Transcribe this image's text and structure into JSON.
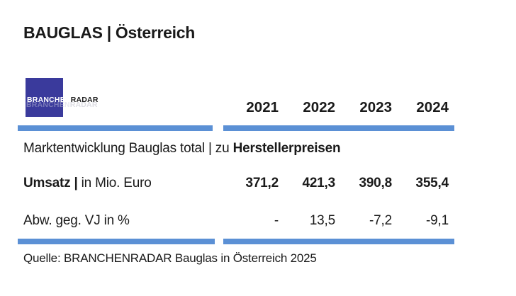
{
  "title": "BAUGLAS | Österreich",
  "logo": {
    "part1": "BRANCHEN",
    "part2": "RADAR"
  },
  "table": {
    "years": [
      "2021",
      "2022",
      "2023",
      "2024"
    ],
    "section": {
      "regular": "Marktentwicklung Bauglas total | zu ",
      "bold": "Herstellerpreisen"
    },
    "rows": [
      {
        "label_bold": "Umsatz | ",
        "label_regular": "in Mio. Euro",
        "values": [
          "371,2",
          "421,3",
          "390,8",
          "355,4"
        ]
      },
      {
        "label_bold": "",
        "label_regular": "Abw. geg. VJ in %",
        "values": [
          "-",
          "13,5",
          "-7,2",
          "-9,1"
        ]
      }
    ]
  },
  "source": "Quelle: BRANCHENRADAR Bauglas in Österreich 2025",
  "colors": {
    "accent_bar": "#5B90D5",
    "logo_background": "#3A3A9C"
  },
  "chart_data": {
    "type": "table",
    "title": "Marktentwicklung Bauglas total | zu Herstellerpreisen",
    "categories": [
      "2021",
      "2022",
      "2023",
      "2024"
    ],
    "series": [
      {
        "name": "Umsatz | in Mio. Euro",
        "values": [
          371.2,
          421.3,
          390.8,
          355.4
        ]
      },
      {
        "name": "Abw. geg. VJ in %",
        "values": [
          null,
          13.5,
          -7.2,
          -9.1
        ]
      }
    ]
  }
}
